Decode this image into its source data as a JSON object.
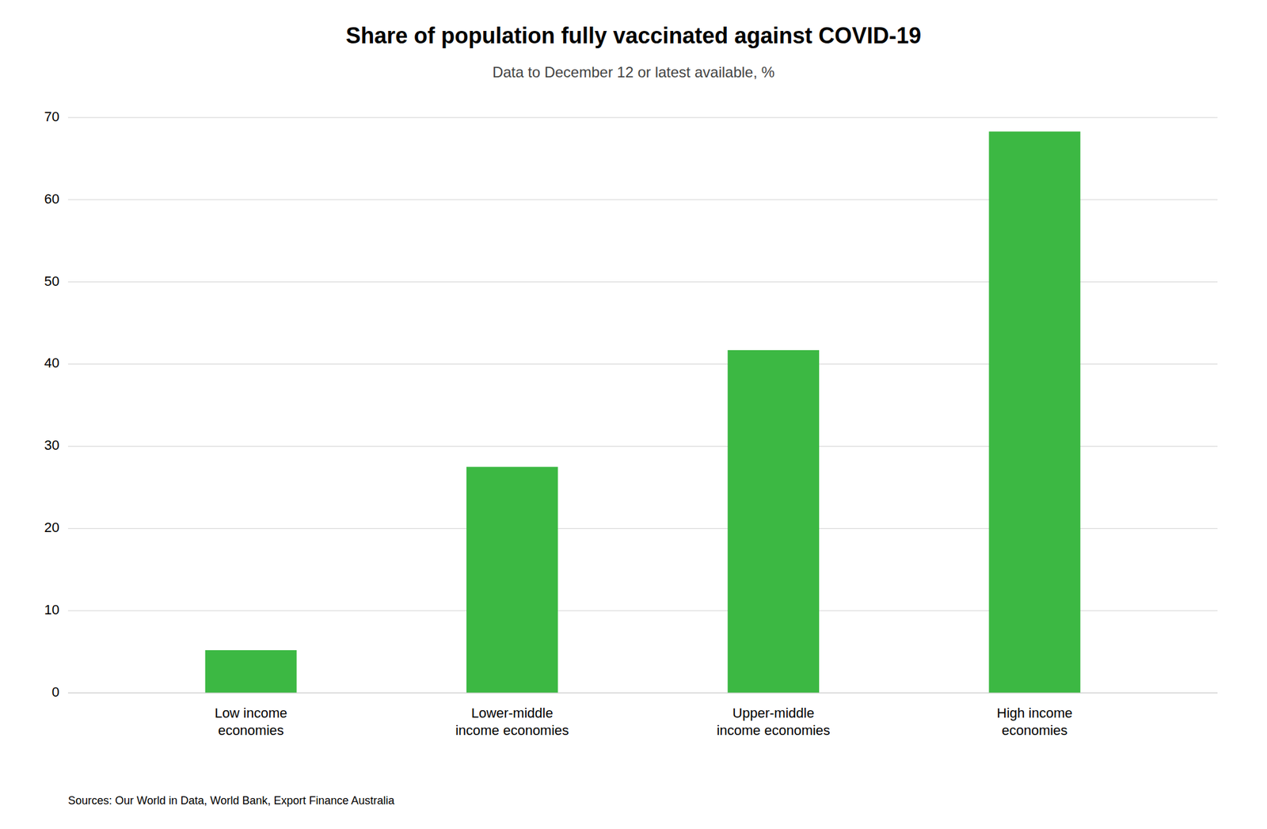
{
  "chart_data": {
    "type": "bar",
    "title": "Share of population fully vaccinated against COVID-19",
    "subtitle": "Data to December 12 or latest available, %",
    "categories": [
      "Low income\neconomies",
      "Lower-middle\nincome economies",
      "Upper-middle\nincome economies",
      "High income\neconomies"
    ],
    "values": [
      5.2,
      27.5,
      41.7,
      68.3
    ],
    "color": "#3cb843",
    "ylim": [
      0,
      70
    ],
    "yticks": [
      0,
      10,
      20,
      30,
      40,
      50,
      60,
      70
    ],
    "grid": true,
    "source": "Sources: Our World in Data, World Bank, Export Finance Australia"
  }
}
